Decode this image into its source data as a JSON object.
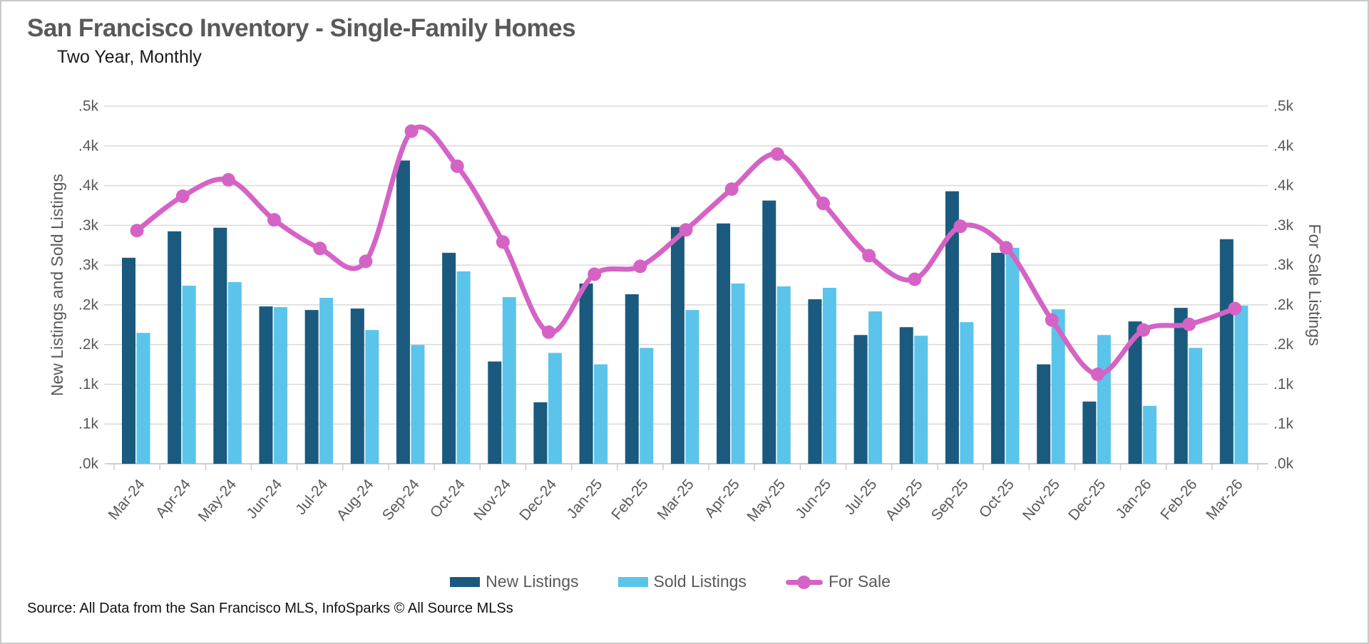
{
  "page": {
    "title": "San Francisco Inventory - Single-Family Homes",
    "subtitle": "Two Year, Monthly",
    "source": "Source: All Data from the San Francisco MLS, InfoSparks © All Source MLSs"
  },
  "colors": {
    "new_listings": "#1a5a7e",
    "sold_listings": "#5bc4ea",
    "for_sale": "#d563c5",
    "axis_text": "#595959",
    "grid": "#d9d9d9",
    "baseline": "#cccccc"
  },
  "chart_data": {
    "type": "bar+line",
    "title": "San Francisco Inventory - Single-Family Homes",
    "subtitle": "Two Year, Monthly",
    "categories": [
      "Mar-24",
      "Apr-24",
      "May-24",
      "Jun-24",
      "Jul-24",
      "Aug-24",
      "Sep-24",
      "Oct-24",
      "Nov-24",
      "Dec-24",
      "Jan-25",
      "Feb-25",
      "Mar-25",
      "Apr-25",
      "May-25",
      "Jun-25",
      "Jul-25",
      "Aug-25",
      "Sep-25",
      "Oct-25",
      "Nov-25",
      "Dec-25",
      "Jan-26",
      "Feb-26",
      "Mar-26"
    ],
    "series": [
      {
        "name": "New Listings",
        "type": "bar",
        "values": [
          288,
          325,
          330,
          220,
          215,
          217,
          424,
          295,
          143,
          86,
          252,
          237,
          331,
          336,
          368,
          230,
          180,
          191,
          381,
          295,
          139,
          87,
          199,
          218,
          314
        ]
      },
      {
        "name": "Sold Listings",
        "type": "bar",
        "values": [
          183,
          249,
          254,
          219,
          232,
          187,
          166,
          269,
          233,
          155,
          139,
          162,
          215,
          252,
          248,
          246,
          213,
          179,
          198,
          302,
          216,
          180,
          81,
          162,
          221
        ]
      },
      {
        "name": "For Sale",
        "type": "line",
        "values": [
          326,
          374,
          397,
          341,
          301,
          283,
          465,
          416,
          310,
          184,
          265,
          276,
          327,
          384,
          433,
          364,
          291,
          258,
          332,
          302,
          201,
          125,
          187,
          195,
          217
        ]
      }
    ],
    "y_axis": {
      "min": 0,
      "max": 500,
      "unit": "k (thousands of listings)",
      "tick_labels": [
        ".5k",
        ".4k",
        ".4k",
        ".3k",
        ".3k",
        ".2k",
        ".2k",
        ".1k",
        ".1k",
        ".0k"
      ],
      "left_title": "New Listings and Sold Listings",
      "right_title": "For Sale Listings"
    },
    "grid": true,
    "legend_position": "bottom"
  }
}
